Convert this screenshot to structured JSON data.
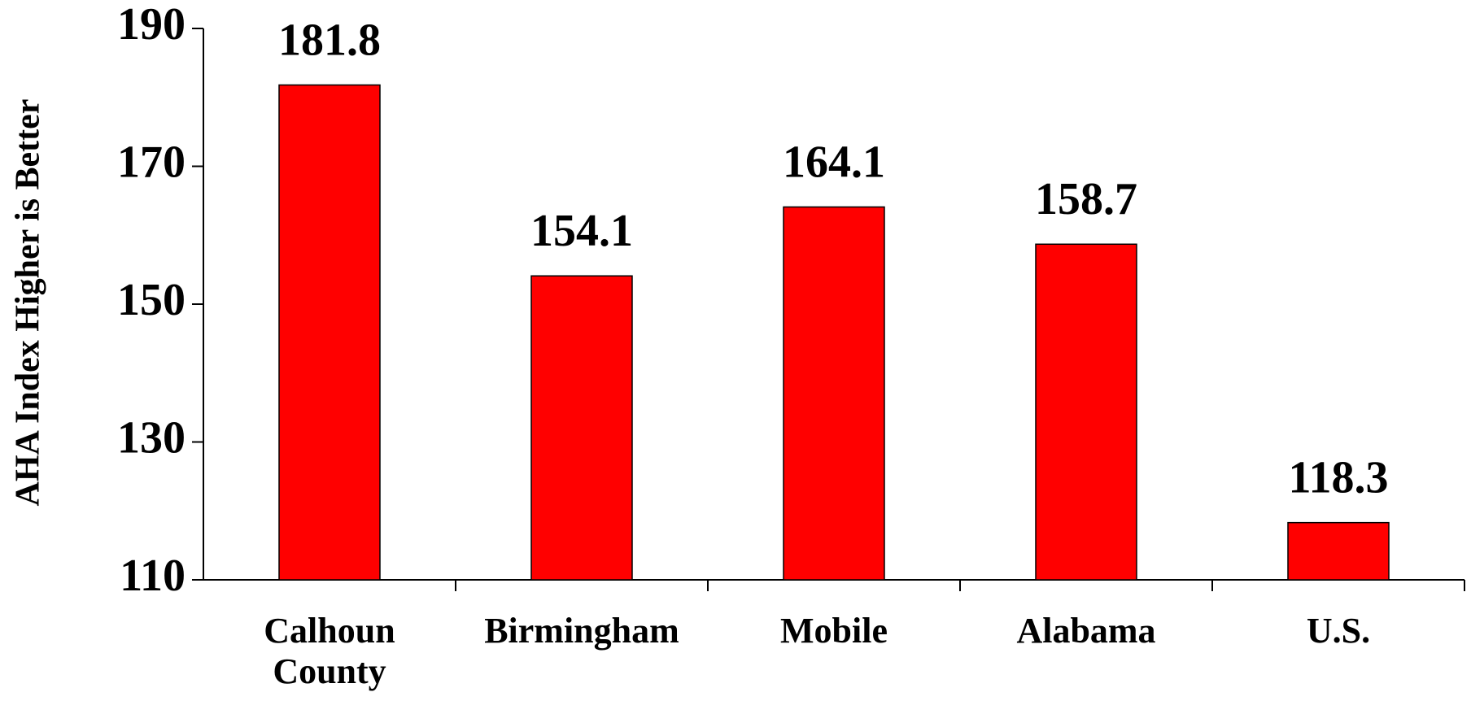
{
  "chart_data": {
    "type": "bar",
    "y_label": "AHA Index Higher is Better",
    "categories": [
      "Calhoun County",
      "Birmingham",
      "Mobile",
      "Alabama",
      "U.S."
    ],
    "values": [
      181.8,
      154.1,
      164.1,
      158.7,
      118.3
    ],
    "color": "#ff0000",
    "ylim": [
      110,
      190
    ],
    "yticks": [
      110,
      130,
      150,
      170,
      190
    ],
    "grid": false
  }
}
